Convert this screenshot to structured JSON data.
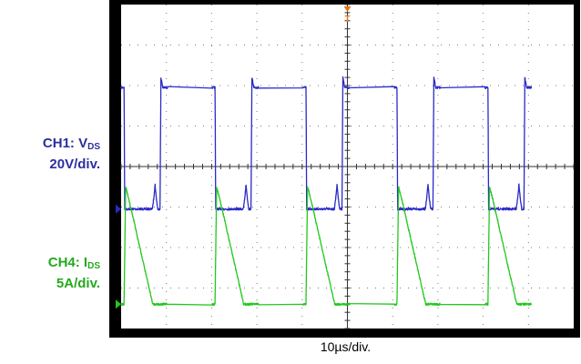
{
  "chart_data": {
    "type": "line",
    "title": "",
    "grid": true,
    "divisions": {
      "horizontal": 10,
      "vertical": 8
    },
    "timebase_label": "10µs/div.",
    "x_unit": "µs",
    "x_range": [
      0,
      100
    ],
    "period_us": 20.1,
    "series": [
      {
        "id": "ch1",
        "name_prefix": "CH1: V",
        "name_sub": "DS",
        "scale_label": "20V/div.",
        "color": "#2a2ac8",
        "ground_div_from_top": 5.05,
        "unit_per_div": 20,
        "y_unit": "V",
        "waveform_one_period": [
          [
            0.0,
            60.0
          ],
          [
            0.65,
            60.0
          ],
          [
            0.8,
            0.0
          ],
          [
            6.9,
            0.0
          ],
          [
            7.2,
            5.0
          ],
          [
            7.5,
            12.0
          ],
          [
            7.8,
            5.0
          ],
          [
            8.1,
            0.0
          ],
          [
            8.6,
            0.0
          ],
          [
            8.8,
            65.0
          ],
          [
            9.2,
            60.0
          ],
          [
            10.3,
            60.0
          ]
        ]
      },
      {
        "id": "ch4",
        "name_prefix": "CH4: I",
        "name_sub": "DS",
        "scale_label": "5A/div.",
        "color": "#22c81e",
        "ground_div_from_top": 7.4,
        "unit_per_div": 5,
        "y_unit": "A",
        "waveform_one_period": [
          [
            0.0,
            0.0
          ],
          [
            0.65,
            0.0
          ],
          [
            0.7,
            2.3
          ],
          [
            1.0,
            14.5
          ],
          [
            1.7,
            13.0
          ],
          [
            7.0,
            0.0
          ],
          [
            10.3,
            0.0
          ]
        ]
      }
    ],
    "markers": [
      {
        "name": "trigger-position",
        "glyph": "T",
        "color": "#e07a10"
      }
    ]
  }
}
